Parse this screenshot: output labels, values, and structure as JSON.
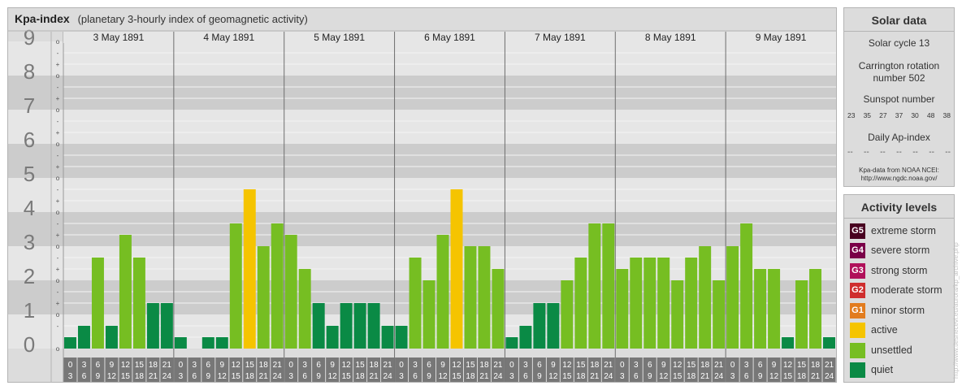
{
  "title": "Kpa-index",
  "subtitle": "(planetary 3-hourly index of geomagnetic activity)",
  "chart_data": {
    "type": "bar",
    "days": [
      "3 May 1891",
      "4 May 1891",
      "5 May 1891",
      "6 May 1891",
      "7 May 1891",
      "8 May 1891",
      "9 May 1891"
    ],
    "interval_labels": [
      [
        "0",
        "3"
      ],
      [
        "3",
        "6"
      ],
      [
        "6",
        "9"
      ],
      [
        "9",
        "12"
      ],
      [
        "12",
        "15"
      ],
      [
        "15",
        "18"
      ],
      [
        "18",
        "21"
      ],
      [
        "21",
        "24"
      ]
    ],
    "values": [
      0.333,
      0.667,
      2.667,
      0.667,
      3.333,
      2.667,
      1.333,
      1.333,
      0.333,
      0.0,
      0.333,
      0.333,
      3.667,
      4.667,
      3.0,
      3.667,
      3.333,
      2.333,
      1.333,
      0.667,
      1.333,
      1.333,
      1.333,
      0.667,
      0.667,
      2.667,
      2.0,
      3.333,
      4.667,
      3.0,
      3.0,
      2.333,
      0.333,
      0.667,
      1.333,
      1.333,
      2.0,
      2.667,
      3.667,
      3.667,
      2.333,
      2.667,
      2.667,
      2.667,
      2.0,
      2.667,
      3.0,
      2.0,
      3.0,
      3.667,
      2.333,
      2.333,
      0.333,
      2.0,
      2.333,
      0.333
    ],
    "y_ticks": [
      "0",
      "1",
      "2",
      "3",
      "4",
      "5",
      "6",
      "7",
      "8",
      "9"
    ],
    "sub_ticks": [
      "+",
      "o",
      "-"
    ],
    "ylim": [
      0,
      9
    ],
    "level_colors": {
      "quiet": "#0a8a45",
      "unsettled": "#76be22",
      "active": "#f5c400",
      "minor": "#e27c1e",
      "moderate": "#cf2d2d",
      "strong": "#b0105a",
      "severe": "#7a0048",
      "extreme": "#480020"
    }
  },
  "solar": {
    "title": "Solar data",
    "cycle": "Solar cycle 13",
    "carrington_1": "Carrington rotation",
    "carrington_2": "number 502",
    "sunspot_title": "Sunspot number",
    "sunspots": [
      "23",
      "35",
      "27",
      "37",
      "30",
      "48",
      "38"
    ],
    "ap_title": "Daily Ap-index",
    "ap_values": [
      "--",
      "--",
      "--",
      "--",
      "--",
      "--",
      "--"
    ],
    "note_1": "Kpa-data from NOAA NCEI:",
    "note_2": "http://www.ngdc.noaa.gov/"
  },
  "activity": {
    "title": "Activity levels",
    "items": [
      {
        "code": "G5",
        "label": "extreme storm",
        "color": "#480020"
      },
      {
        "code": "G4",
        "label": "severe storm",
        "color": "#7a0048"
      },
      {
        "code": "G3",
        "label": "strong storm",
        "color": "#b0105a"
      },
      {
        "code": "G2",
        "label": "moderate storm",
        "color": "#cf2d2d"
      },
      {
        "code": "G1",
        "label": "minor storm",
        "color": "#e27c1e"
      },
      {
        "code": "",
        "label": "active",
        "color": "#f5c400"
      },
      {
        "code": "",
        "label": "unsettled",
        "color": "#76be22"
      },
      {
        "code": "",
        "label": "quiet",
        "color": "#0a8a45"
      }
    ]
  },
  "watermark": "http://www.tiesnecevi.eu/aurora/kp_archive.php"
}
